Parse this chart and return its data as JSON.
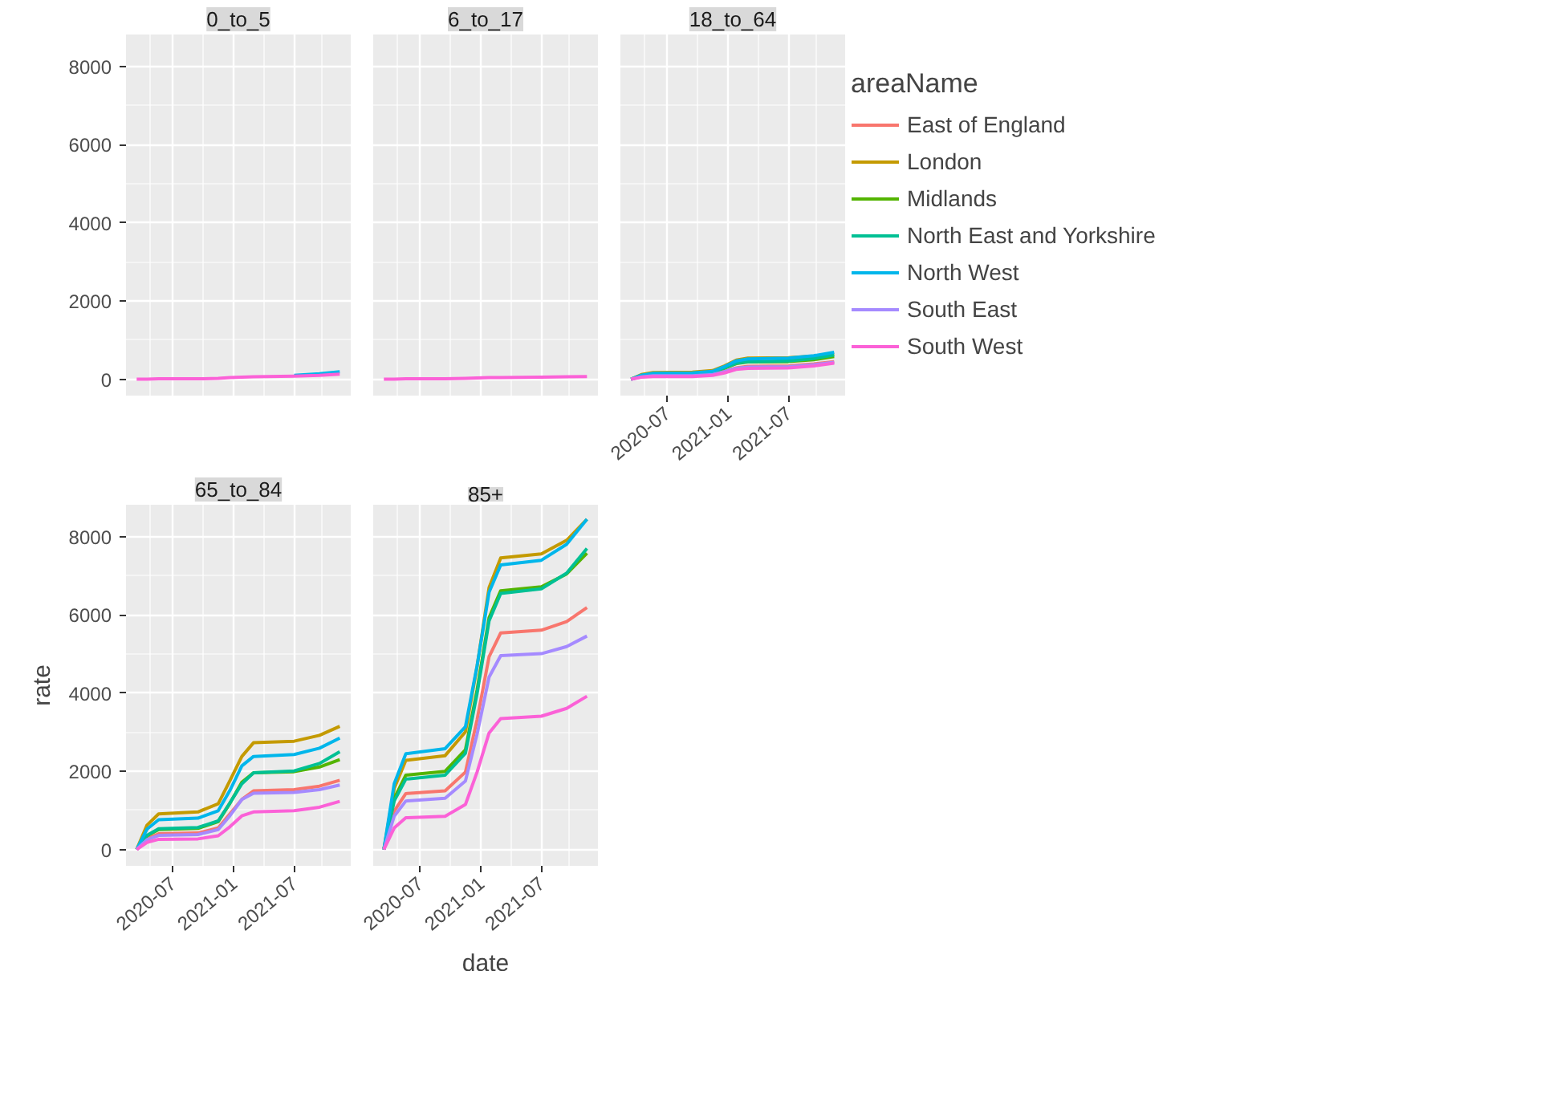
{
  "chart_data": [
    {
      "type": "line",
      "title": "0_to_5",
      "tick_labels": "y",
      "x": [
        "2020-03-15",
        "2020-04-15",
        "2020-05-20",
        "2020-09-15",
        "2020-11-15",
        "2020-12-20",
        "2021-01-25",
        "2021-03-01",
        "2021-07-01",
        "2021-09-15",
        "2021-11-15"
      ],
      "xlim": [
        "2020-02-12",
        "2021-12-18"
      ],
      "xticks": [
        "2020-07",
        "2021-01",
        "2021-07"
      ],
      "ylim": [
        -420,
        8820
      ],
      "yticks": [
        0,
        2000,
        4000,
        6000,
        8000
      ],
      "grid": true,
      "series": [
        {
          "color": "#f8766d",
          "values": [
            null,
            null,
            null,
            null,
            null,
            null,
            null,
            null,
            null,
            null,
            null
          ]
        },
        {
          "color": "#c49a00",
          "values": [
            null,
            null,
            null,
            null,
            null,
            null,
            null,
            null,
            null,
            null,
            null
          ]
        },
        {
          "color": "#53b400",
          "values": [
            null,
            null,
            null,
            null,
            null,
            null,
            null,
            null,
            null,
            null,
            null
          ]
        },
        {
          "color": "#00c094",
          "values": [
            null,
            null,
            null,
            null,
            null,
            null,
            null,
            null,
            null,
            null,
            null
          ]
        },
        {
          "color": "#00b6eb",
          "values": [
            null,
            null,
            null,
            null,
            null,
            null,
            null,
            null,
            100,
            140,
            190
          ]
        },
        {
          "color": "#a58aff",
          "values": [
            null,
            null,
            null,
            null,
            null,
            null,
            null,
            null,
            null,
            null,
            null
          ]
        },
        {
          "color": "#fb61d7",
          "values": [
            0,
            0,
            10,
            10,
            20,
            40,
            50,
            60,
            80,
            100,
            130
          ]
        }
      ]
    },
    {
      "type": "line",
      "title": "6_to_17",
      "tick_labels": false,
      "x": [
        "2020-03-15",
        "2020-04-15",
        "2020-05-20",
        "2020-09-15",
        "2020-11-15",
        "2020-12-20",
        "2021-01-25",
        "2021-03-01",
        "2021-07-01",
        "2021-09-15",
        "2021-11-15"
      ],
      "xlim": [
        "2020-02-12",
        "2021-12-18"
      ],
      "xticks": [
        "2020-07",
        "2021-01",
        "2021-07"
      ],
      "ylim": [
        -420,
        8820
      ],
      "yticks": [
        0,
        2000,
        4000,
        6000,
        8000
      ],
      "grid": true,
      "series": [
        {
          "color": "#f8766d",
          "values": [
            null,
            null,
            null,
            null,
            null,
            null,
            null,
            null,
            null,
            null,
            null
          ]
        },
        {
          "color": "#c49a00",
          "values": [
            null,
            null,
            null,
            null,
            null,
            null,
            null,
            null,
            null,
            null,
            null
          ]
        },
        {
          "color": "#53b400",
          "values": [
            null,
            null,
            null,
            null,
            null,
            null,
            null,
            null,
            null,
            null,
            null
          ]
        },
        {
          "color": "#00c094",
          "values": [
            null,
            null,
            null,
            null,
            null,
            null,
            null,
            null,
            null,
            null,
            null
          ]
        },
        {
          "color": "#00b6eb",
          "values": [
            null,
            null,
            null,
            null,
            null,
            null,
            null,
            null,
            null,
            null,
            null
          ]
        },
        {
          "color": "#a58aff",
          "values": [
            null,
            null,
            null,
            null,
            null,
            null,
            null,
            null,
            null,
            null,
            null
          ]
        },
        {
          "color": "#fb61d7",
          "values": [
            0,
            0,
            10,
            10,
            20,
            30,
            40,
            40,
            50,
            60,
            70
          ]
        }
      ]
    },
    {
      "type": "line",
      "title": "18_to_64",
      "tick_labels": "x",
      "legend": "right",
      "legend_title": "areaName",
      "x": [
        "2020-03-15",
        "2020-04-15",
        "2020-05-20",
        "2020-09-15",
        "2020-11-15",
        "2020-12-20",
        "2021-01-25",
        "2021-03-01",
        "2021-07-01",
        "2021-09-15",
        "2021-11-15"
      ],
      "xlim": [
        "2020-02-12",
        "2021-12-18"
      ],
      "xticks": [
        "2020-07",
        "2021-01",
        "2021-07"
      ],
      "ylim": [
        -420,
        8820
      ],
      "yticks": [
        0,
        2000,
        4000,
        6000,
        8000
      ],
      "grid": true,
      "series": [
        {
          "name": "East of England",
          "color": "#f8766d",
          "values": [
            null,
            null,
            null,
            100,
            130,
            200,
            290,
            330,
            340,
            390,
            450
          ]
        },
        {
          "name": "London",
          "color": "#c49a00",
          "values": [
            0,
            120,
            170,
            180,
            220,
            340,
            490,
            540,
            550,
            590,
            640
          ]
        },
        {
          "name": "Midlands",
          "color": "#53b400",
          "values": [
            0,
            90,
            130,
            140,
            180,
            280,
            400,
            440,
            450,
            500,
            580
          ]
        },
        {
          "name": "North East and Yorkshire",
          "color": "#00c094",
          "values": [
            0,
            100,
            140,
            150,
            190,
            290,
            410,
            450,
            470,
            530,
            620
          ]
        },
        {
          "name": "North West",
          "color": "#00b6eb",
          "values": [
            0,
            100,
            150,
            160,
            200,
            320,
            470,
            520,
            540,
            600,
            690
          ]
        },
        {
          "name": "South East",
          "color": "#a58aff",
          "values": [
            0,
            60,
            90,
            90,
            120,
            190,
            280,
            310,
            320,
            370,
            430
          ]
        },
        {
          "name": "South West",
          "color": "#fb61d7",
          "values": [
            0,
            50,
            70,
            70,
            100,
            160,
            250,
            280,
            290,
            340,
            410
          ]
        }
      ]
    },
    {
      "type": "line",
      "title": "65_to_84",
      "ylabel": "rate",
      "x": [
        "2020-03-15",
        "2020-04-15",
        "2020-05-20",
        "2020-09-15",
        "2020-11-15",
        "2020-12-20",
        "2021-01-25",
        "2021-03-01",
        "2021-07-01",
        "2021-09-15",
        "2021-11-15"
      ],
      "xlim": [
        "2020-02-12",
        "2021-12-18"
      ],
      "xticks": [
        "2020-07",
        "2021-01",
        "2021-07"
      ],
      "ylim": [
        -420,
        8820
      ],
      "yticks": [
        0,
        2000,
        4000,
        6000,
        8000
      ],
      "grid": true,
      "series": [
        {
          "color": "#f8766d",
          "values": [
            0,
            270,
            400,
            420,
            550,
            910,
            1280,
            1500,
            1530,
            1620,
            1770
          ]
        },
        {
          "color": "#c49a00",
          "values": [
            0,
            620,
            910,
            960,
            1170,
            1760,
            2380,
            2730,
            2770,
            2920,
            3150
          ]
        },
        {
          "color": "#53b400",
          "values": [
            0,
            350,
            510,
            540,
            710,
            1180,
            1720,
            1960,
            1990,
            2110,
            2300
          ]
        },
        {
          "color": "#00c094",
          "values": [
            0,
            360,
            530,
            560,
            730,
            1190,
            1680,
            1960,
            2010,
            2200,
            2500
          ]
        },
        {
          "color": "#00b6eb",
          "values": [
            0,
            520,
            760,
            800,
            990,
            1510,
            2140,
            2380,
            2430,
            2590,
            2850
          ]
        },
        {
          "color": "#a58aff",
          "values": [
            0,
            250,
            360,
            380,
            510,
            860,
            1280,
            1440,
            1460,
            1530,
            1650
          ]
        },
        {
          "color": "#fb61d7",
          "values": [
            0,
            180,
            260,
            270,
            350,
            580,
            860,
            960,
            990,
            1080,
            1230
          ]
        }
      ]
    },
    {
      "type": "line",
      "title": "85+",
      "xlabel": "date",
      "tick_labels": "x",
      "x": [
        "2020-03-15",
        "2020-04-15",
        "2020-05-20",
        "2020-09-15",
        "2020-11-15",
        "2020-12-20",
        "2021-01-25",
        "2021-03-01",
        "2021-07-01",
        "2021-09-15",
        "2021-11-15"
      ],
      "xlim": [
        "2020-02-12",
        "2021-12-18"
      ],
      "xticks": [
        "2020-07",
        "2021-01",
        "2021-07"
      ],
      "ylim": [
        -420,
        8820
      ],
      "yticks": [
        0,
        2000,
        4000,
        6000,
        8000
      ],
      "grid": true,
      "series": [
        {
          "color": "#f8766d",
          "values": [
            0,
            980,
            1430,
            1500,
            1980,
            3320,
            4930,
            5540,
            5610,
            5830,
            6190
          ]
        },
        {
          "color": "#c49a00",
          "values": [
            0,
            1560,
            2280,
            2400,
            3010,
            4680,
            6700,
            7460,
            7560,
            7910,
            8450
          ]
        },
        {
          "color": "#53b400",
          "values": [
            0,
            1300,
            1900,
            2000,
            2550,
            4080,
            5930,
            6620,
            6720,
            7050,
            7580
          ]
        },
        {
          "color": "#00c094",
          "values": [
            0,
            1240,
            1800,
            1900,
            2460,
            3990,
            5850,
            6550,
            6670,
            7070,
            7700
          ]
        },
        {
          "color": "#00b6eb",
          "values": [
            0,
            1680,
            2450,
            2580,
            3140,
            4700,
            6580,
            7280,
            7400,
            7810,
            8450
          ]
        },
        {
          "color": "#a58aff",
          "values": [
            0,
            850,
            1240,
            1310,
            1750,
            2950,
            4410,
            4960,
            5010,
            5190,
            5460
          ]
        },
        {
          "color": "#fb61d7",
          "values": [
            0,
            550,
            810,
            850,
            1150,
            1980,
            2980,
            3350,
            3410,
            3610,
            3920
          ]
        }
      ]
    }
  ]
}
